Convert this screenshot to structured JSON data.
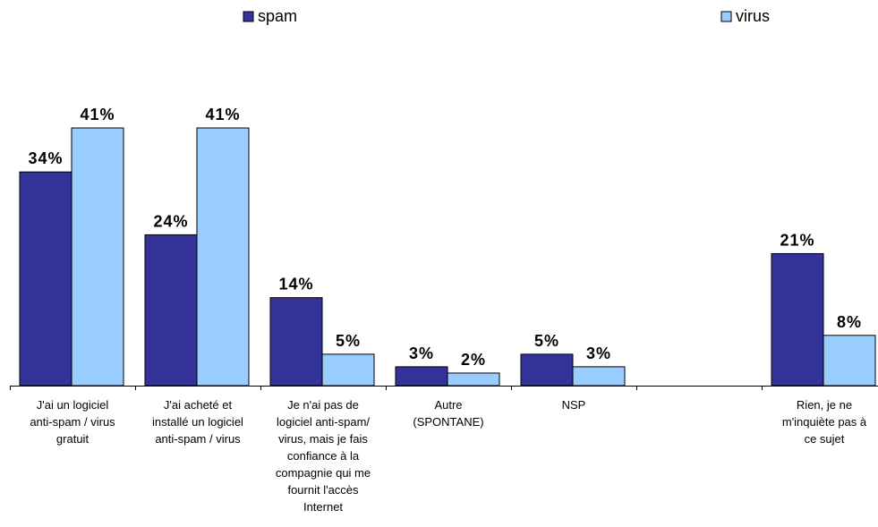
{
  "chart_data": {
    "type": "bar",
    "categories": [
      [
        "J'ai un logiciel",
        "anti-spam / virus",
        "gratuit"
      ],
      [
        "J'ai acheté et",
        "installé un logiciel",
        "anti-spam / virus"
      ],
      [
        "Je n'ai pas de",
        "logiciel anti-spam/",
        "virus, mais je fais",
        "confiance à la",
        "compagnie qui me",
        "fournit l'accès",
        "Internet"
      ],
      [
        "Autre",
        "(SPONTANE)"
      ],
      [
        "NSP"
      ],
      [],
      [
        "Rien, je ne",
        "m'inquiète pas à",
        "ce sujet"
      ]
    ],
    "series": [
      {
        "name": "spam",
        "values": [
          34,
          24,
          14,
          3,
          5,
          null,
          21
        ],
        "labels": [
          "34%",
          "24%",
          "14%",
          "3%",
          "5%",
          "",
          "21%"
        ]
      },
      {
        "name": "virus",
        "values": [
          41,
          41,
          5,
          2,
          3,
          null,
          8
        ],
        "labels": [
          "41%",
          "41%",
          "5%",
          "2%",
          "3%",
          "",
          "8%"
        ]
      }
    ],
    "colors": {
      "spam": "#333399",
      "virus": "#99ccff"
    },
    "ylim": [
      0,
      41
    ],
    "legend_position": "top",
    "grid": false,
    "title": "",
    "xlabel": "",
    "ylabel": ""
  }
}
